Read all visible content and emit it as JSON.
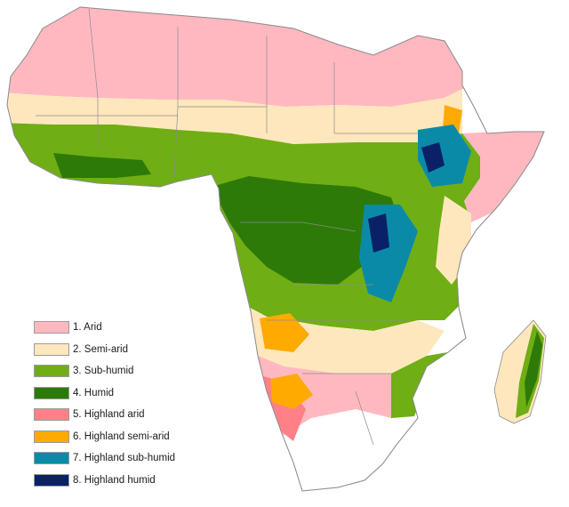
{
  "map": {
    "zones": [
      {
        "id": "arid",
        "label": "1. Arid",
        "color": "#ffb8c0"
      },
      {
        "id": "semi-arid",
        "label": "2. Semi-arid",
        "color": "#ffe7bd"
      },
      {
        "id": "sub-humid",
        "label": "3. Sub-humid",
        "color": "#6fae14"
      },
      {
        "id": "humid",
        "label": "4. Humid",
        "color": "#2d7a08"
      },
      {
        "id": "highland-arid",
        "label": "5. Highland arid",
        "color": "#ff8087"
      },
      {
        "id": "highland-semi-arid",
        "label": "6. Highland semi-arid",
        "color": "#ffaa00"
      },
      {
        "id": "highland-sub-humid",
        "label": "7. Highland sub-humid",
        "color": "#0b8aa8"
      },
      {
        "id": "highland-humid",
        "label": "8. Highland humid",
        "color": "#0a2168"
      }
    ],
    "border_color": "#8c8c8c",
    "land_color": "#ffffff"
  }
}
